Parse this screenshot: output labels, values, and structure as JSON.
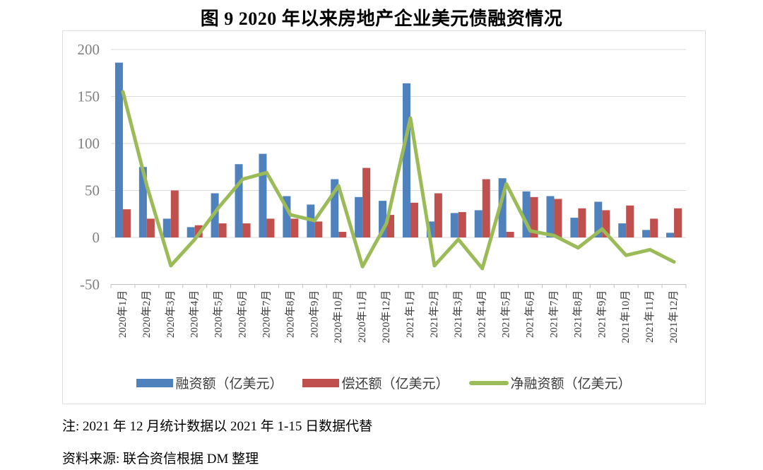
{
  "title": "图 9  2020 年以来房地产企业美元债融资情况",
  "note": "注: 2021 年 12 月统计数据以 2021 年 1-15 日数据代替",
  "source": "资料来源: 联合资信根据 DM 整理",
  "chart_data": {
    "type": "bar+line",
    "title": "图 9  2020 年以来房地产企业美元债融资情况",
    "categories": [
      "2020年1月",
      "2020年2月",
      "2020年3月",
      "2020年4月",
      "2020年5月",
      "2020年6月",
      "2020年7月",
      "2020年8月",
      "2020年9月",
      "2020年10月",
      "2020年11月",
      "2020年12月",
      "2021年1月",
      "2021年2月",
      "2021年3月",
      "2021年4月",
      "2021年5月",
      "2021年6月",
      "2021年7月",
      "2021年8月",
      "2021年9月",
      "2021年10月",
      "2021年11月",
      "2021年12月"
    ],
    "series": [
      {
        "name": "融资额（亿美元）",
        "type": "bar",
        "color": "#4F81BD",
        "values": [
          186,
          75,
          20,
          11,
          47,
          78,
          89,
          44,
          35,
          62,
          43,
          39,
          164,
          17,
          26,
          29,
          63,
          49,
          44,
          21,
          38,
          15,
          8,
          5
        ]
      },
      {
        "name": "偿还额（亿美元）",
        "type": "bar",
        "color": "#C0504D",
        "values": [
          30,
          20,
          50,
          13,
          15,
          15,
          20,
          20,
          17,
          6,
          74,
          24,
          37,
          47,
          27,
          62,
          6,
          43,
          41,
          31,
          29,
          34,
          20,
          31
        ]
      },
      {
        "name": "净融资额（亿美元）",
        "type": "line",
        "color": "#9BBB59",
        "values": [
          155,
          55,
          -30,
          -2,
          32,
          62,
          69,
          24,
          18,
          55,
          -31,
          15,
          127,
          -30,
          -2,
          -33,
          57,
          7,
          2,
          -11,
          9,
          -19,
          -13,
          -26
        ]
      }
    ],
    "ylim": [
      -50,
      200
    ],
    "y_ticks": [
      200,
      150,
      100,
      50,
      0,
      -50
    ],
    "grid": true,
    "legend_position": "bottom",
    "grid_color": "#D9D9D9",
    "axis_color": "#BFBFBF",
    "y_tick_label_color": "#808080",
    "x_tick_label_color": "#3A3A3A"
  }
}
